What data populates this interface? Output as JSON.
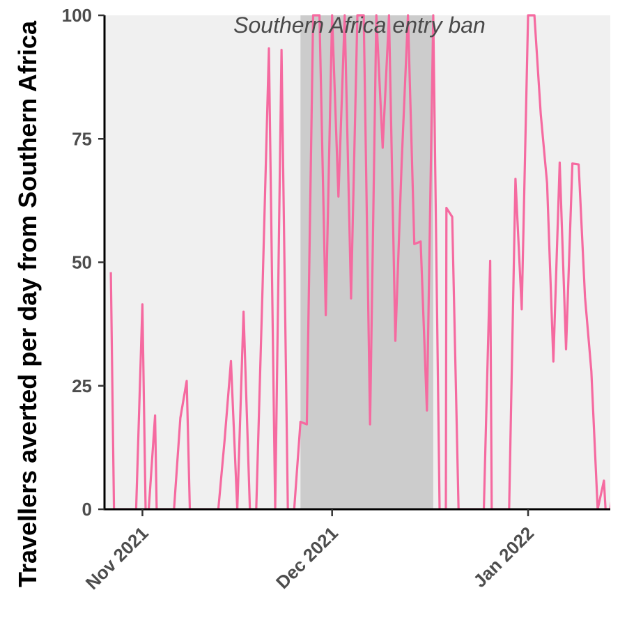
{
  "chart_data": {
    "type": "line",
    "ylabel": "Travellers averted per day from Southern Africa",
    "xlabel": "",
    "title": "",
    "y_ticks": [
      0,
      25,
      50,
      75,
      100
    ],
    "ylim": [
      0,
      100
    ],
    "xlim": [
      "2021-10-26",
      "2022-01-14"
    ],
    "x_ticks": [
      {
        "date": "2021-11-01",
        "label": "Nov 2021"
      },
      {
        "date": "2021-12-01",
        "label": "Dec 2021"
      },
      {
        "date": "2022-01-01",
        "label": "Jan 2022"
      }
    ],
    "shaded_region": {
      "start": "2021-11-26",
      "end": "2021-12-17",
      "label": "Southern Africa entry ban",
      "color": "#cccccc"
    },
    "colors": {
      "panel": "#f0f0f0",
      "line": "#f56aa0",
      "axis": "#000000"
    },
    "grid": false,
    "series": [
      {
        "color": "#f56aa0",
        "points": [
          [
            "2021-10-27",
            48
          ],
          [
            "2021-10-27T12:00",
            0
          ],
          [
            "2021-10-31",
            0
          ],
          [
            "2021-11-01",
            41.5
          ],
          [
            "2021-11-01T12:00",
            0
          ],
          [
            "2021-11-02",
            0
          ],
          [
            "2021-11-03",
            19
          ],
          [
            "2021-11-03T06:00",
            0
          ],
          [
            "2021-11-06",
            0
          ],
          [
            "2021-11-07",
            18.5
          ],
          [
            "2021-11-08",
            26
          ],
          [
            "2021-11-08T12:00",
            0
          ],
          [
            "2021-11-13",
            0
          ],
          [
            "2021-11-14",
            14
          ],
          [
            "2021-11-15",
            30
          ],
          [
            "2021-11-16",
            0
          ],
          [
            "2021-11-17",
            40
          ],
          [
            "2021-11-18",
            0
          ],
          [
            "2021-11-19",
            0
          ],
          [
            "2021-11-20",
            45
          ],
          [
            "2021-11-21",
            93.3
          ],
          [
            "2021-11-22",
            0
          ],
          [
            "2021-11-23",
            93
          ],
          [
            "2021-11-24",
            0
          ],
          [
            "2021-11-25",
            0
          ],
          [
            "2021-11-26",
            17.7
          ],
          [
            "2021-11-27",
            17.2
          ],
          [
            "2021-11-28",
            100
          ],
          [
            "2021-11-29",
            100
          ],
          [
            "2021-11-30",
            39.3
          ],
          [
            "2021-12-01",
            100
          ],
          [
            "2021-12-02",
            63.3
          ],
          [
            "2021-12-03",
            100
          ],
          [
            "2021-12-04",
            42.7
          ],
          [
            "2021-12-05",
            100
          ],
          [
            "2021-12-06",
            100
          ],
          [
            "2021-12-07",
            17.2
          ],
          [
            "2021-12-08",
            100
          ],
          [
            "2021-12-09",
            73.2
          ],
          [
            "2021-12-10",
            100
          ],
          [
            "2021-12-11",
            34.1
          ],
          [
            "2021-12-12",
            70
          ],
          [
            "2021-12-13",
            100
          ],
          [
            "2021-12-14",
            53.7
          ],
          [
            "2021-12-15",
            54.2
          ],
          [
            "2021-12-16",
            20
          ],
          [
            "2021-12-17",
            100
          ],
          [
            "2021-12-18",
            0
          ],
          [
            "2021-12-19",
            0
          ],
          [
            "2021-12-19T02:00",
            61
          ],
          [
            "2021-12-20",
            59.2
          ],
          [
            "2021-12-21",
            0
          ],
          [
            "2021-12-25",
            0
          ],
          [
            "2021-12-26",
            50.3
          ],
          [
            "2021-12-26T06:00",
            0
          ],
          [
            "2021-12-29",
            0
          ],
          [
            "2021-12-30",
            66.9
          ],
          [
            "2021-12-31",
            40.5
          ],
          [
            "2022-01-01",
            100
          ],
          [
            "2022-01-02",
            100
          ],
          [
            "2022-01-03",
            80
          ],
          [
            "2022-01-04",
            66
          ],
          [
            "2022-01-05",
            29.9
          ],
          [
            "2022-01-06",
            70.2
          ],
          [
            "2022-01-07",
            32.4
          ],
          [
            "2022-01-08",
            70
          ],
          [
            "2022-01-09",
            69.8
          ],
          [
            "2022-01-10",
            43
          ],
          [
            "2022-01-11",
            28
          ],
          [
            "2022-01-12",
            0
          ],
          [
            "2022-01-13",
            5.8
          ],
          [
            "2022-01-13T06:00",
            0
          ],
          [
            "2022-01-14",
            0
          ],
          [
            "2022-01-14T06:00",
            2.3
          ]
        ]
      }
    ]
  }
}
